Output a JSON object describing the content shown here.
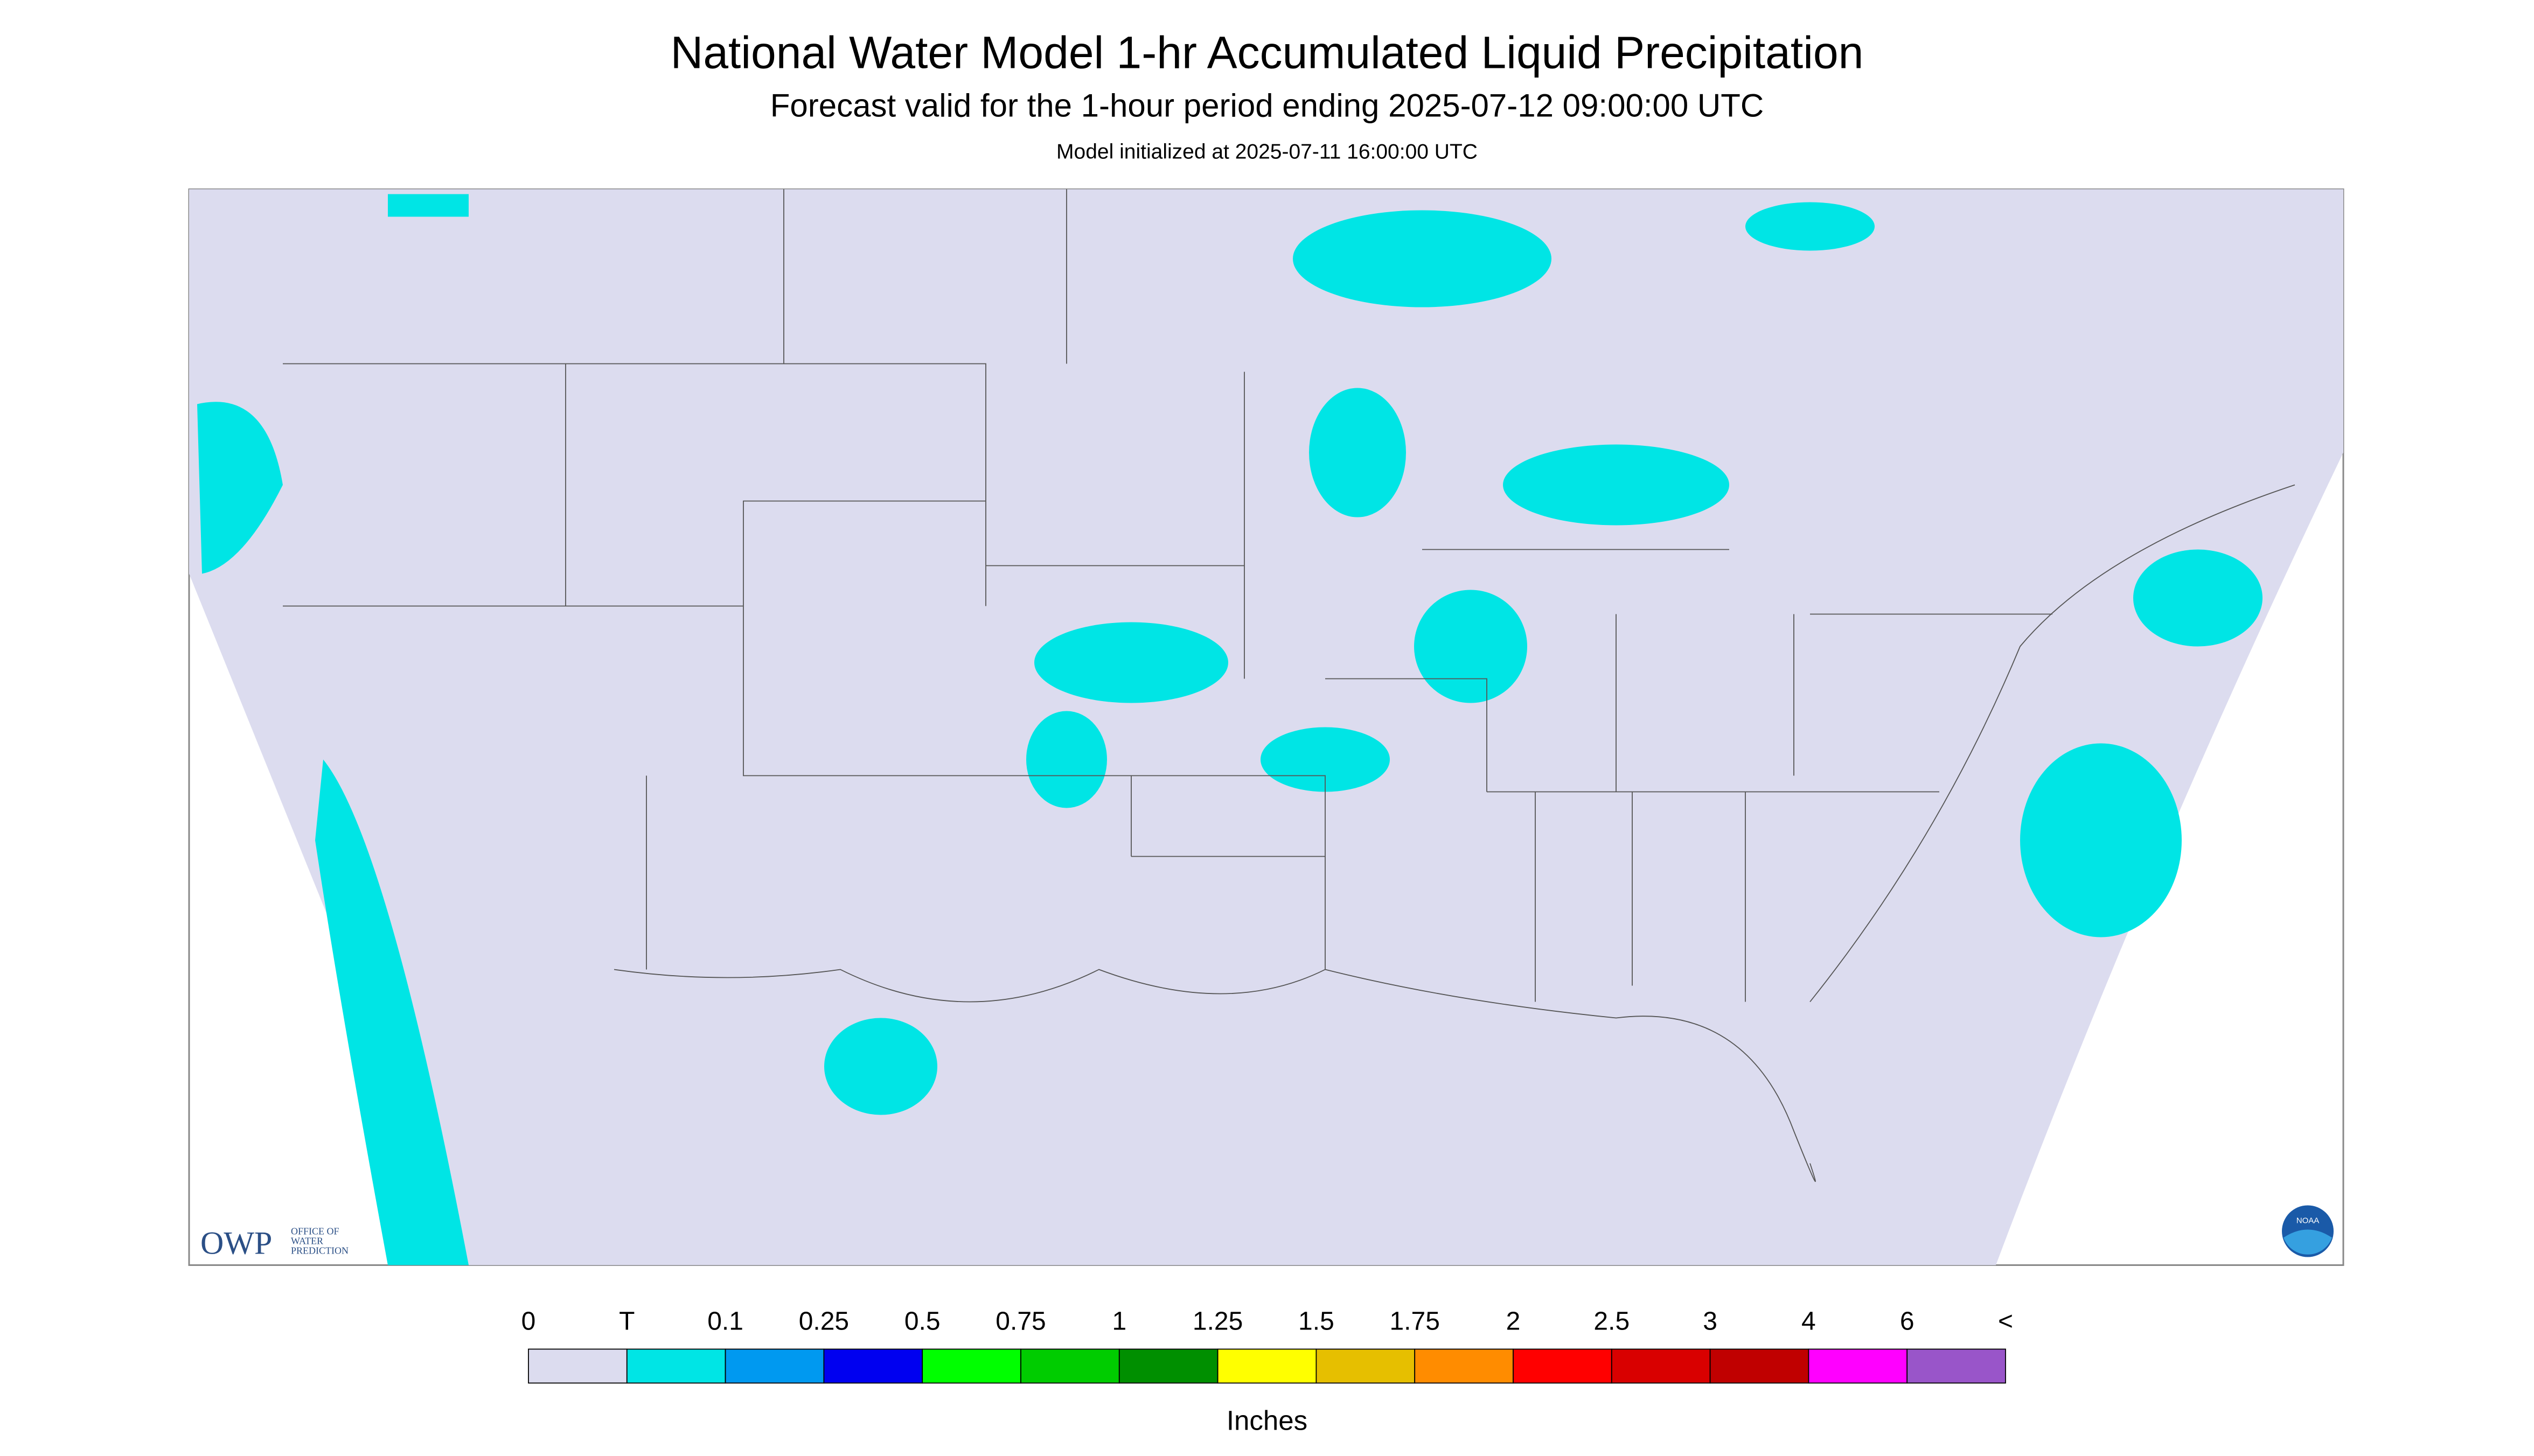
{
  "header": {
    "title": "National Water Model 1-hr Accumulated Liquid Precipitation",
    "subtitle": "Forecast valid for the 1-hour period ending 2025-07-12 09:00:00 UTC",
    "init": "Model initialized at 2025-07-11 16:00:00 UTC"
  },
  "legend": {
    "labels": [
      "0",
      "T",
      "0.1",
      "0.25",
      "0.5",
      "0.75",
      "1",
      "1.25",
      "1.5",
      "1.75",
      "2",
      "2.5",
      "3",
      "4",
      "6",
      "<"
    ],
    "colors": [
      "#dcdcef",
      "#00e5e5",
      "#0099f0",
      "#0000f0",
      "#00ff00",
      "#00cc00",
      "#008f00",
      "#ffff00",
      "#e6bf00",
      "#ff8c00",
      "#ff0000",
      "#d90000",
      "#c00000",
      "#ff00ff",
      "#9955c9"
    ],
    "units": "Inches"
  },
  "logo": {
    "owp": "OWP",
    "lines": [
      "OFFICE OF",
      "WATER",
      "PREDICTION"
    ],
    "noaa": "NOAA"
  }
}
